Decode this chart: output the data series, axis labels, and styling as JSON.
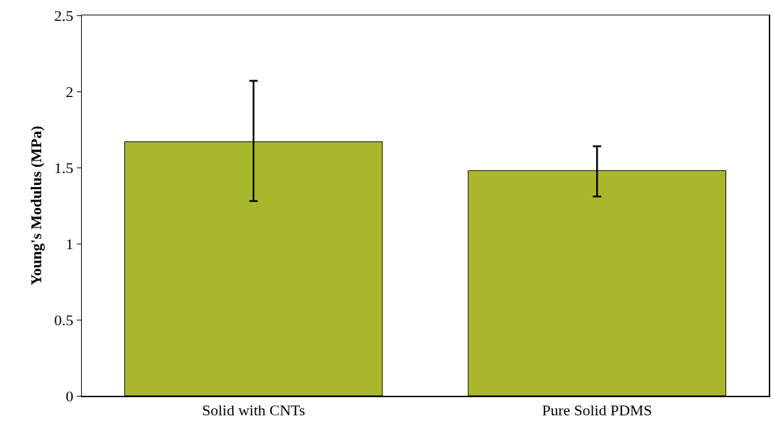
{
  "chart_data": {
    "type": "bar",
    "ylabel": "Young's Modulus (MPa)",
    "categories": [
      "Solid with CNTs",
      "Pure Solid PDMS"
    ],
    "values": [
      1.67,
      1.48
    ],
    "errors": [
      [
        1.28,
        2.07
      ],
      [
        1.31,
        1.64
      ]
    ],
    "color": "#a8b82a",
    "ylim": [
      0,
      2.5
    ],
    "yticks": [
      0,
      0.5,
      1,
      1.5,
      2,
      2.5
    ],
    "grid": false
  }
}
